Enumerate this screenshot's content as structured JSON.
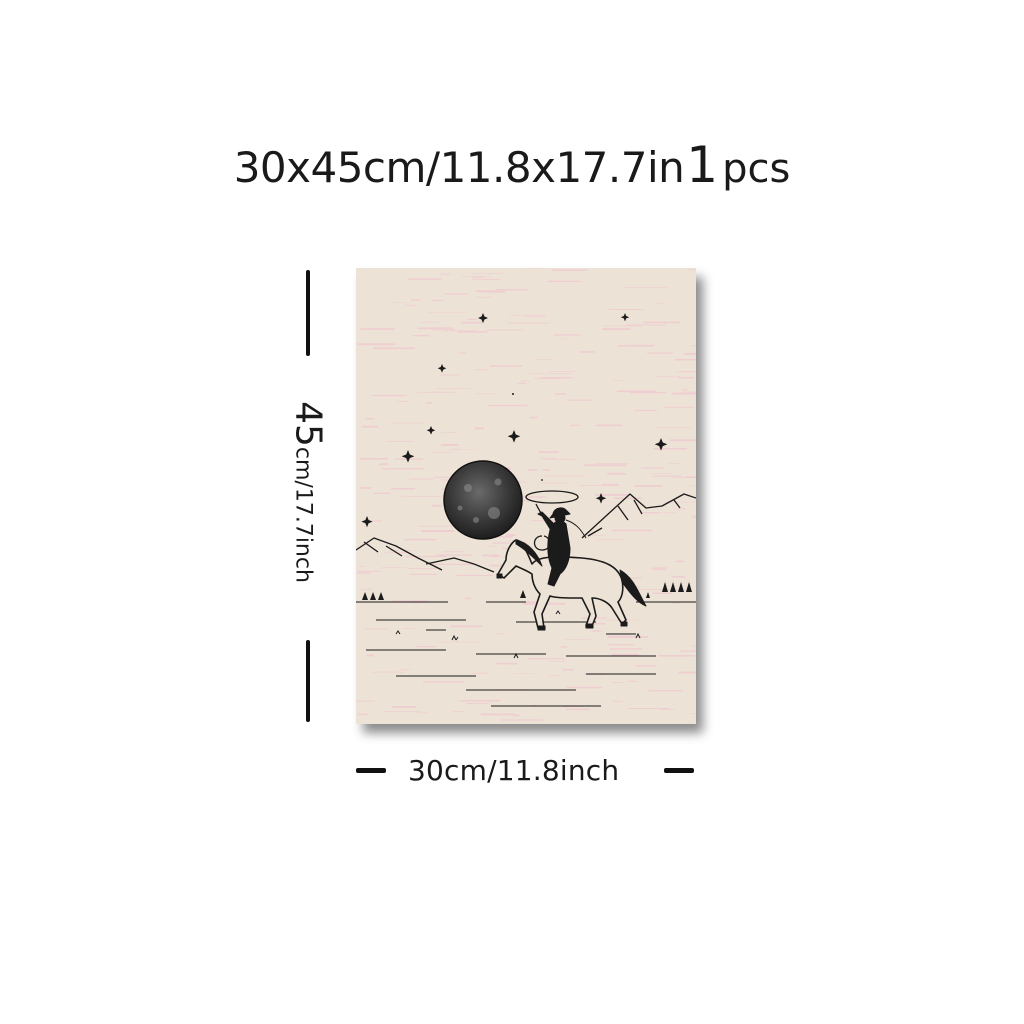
{
  "header": {
    "size_main": "30x45cm/11.8x17.7in",
    "quantity": "1",
    "quantity_unit": "pcs"
  },
  "dimensions": {
    "height_value": "45",
    "height_unit": "cm/17.7inch",
    "width_label": "30cm/11.8inch"
  },
  "poster": {
    "subject": "cowboy-on-horse-with-lasso-under-moon",
    "colors": {
      "paper": "#ede2d6",
      "texture": "#f2bfcf",
      "ink": "#1b1b1b",
      "moon": "#3a3a3a"
    }
  }
}
